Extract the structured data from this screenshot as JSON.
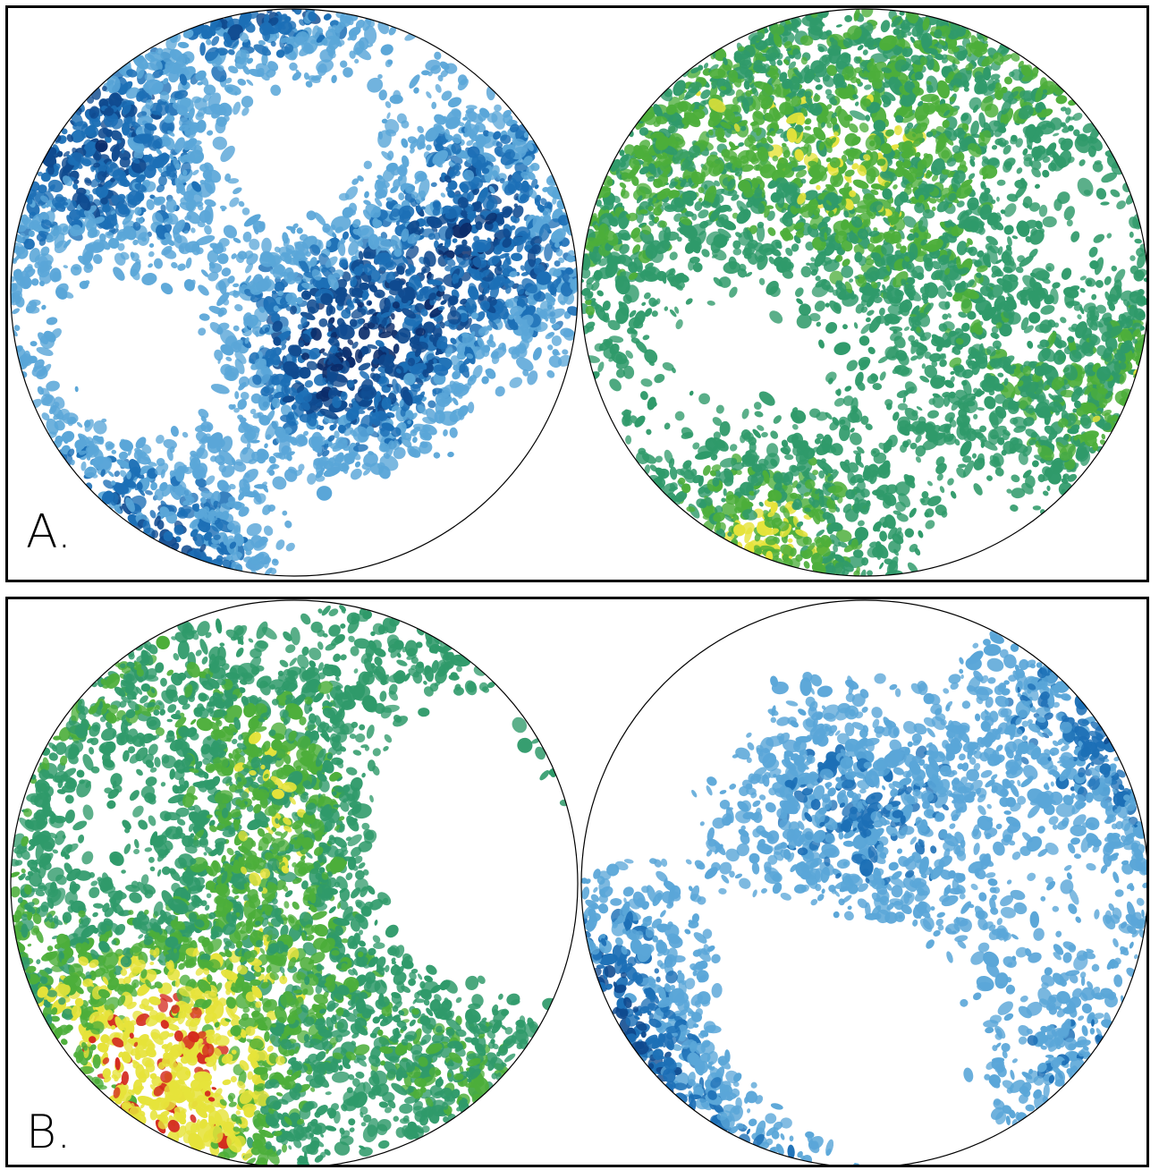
{
  "figure": {
    "panels": [
      {
        "label": "A.",
        "maps": [
          {
            "palette": "blue"
          },
          {
            "palette": "green-yellow-red"
          }
        ]
      },
      {
        "label": "B.",
        "maps": [
          {
            "palette": "green-yellow-red"
          },
          {
            "palette": "blue"
          }
        ]
      }
    ]
  },
  "colors": {
    "background": "#ffffff",
    "frame": "#000000",
    "blue_scale": [
      "#5aa6d8",
      "#1c6fb6",
      "#0f4a8f",
      "#0b2c6a"
    ],
    "warm_scale": [
      "#2f9a6a",
      "#4cae3a",
      "#e6e33a",
      "#d42a1e"
    ]
  }
}
